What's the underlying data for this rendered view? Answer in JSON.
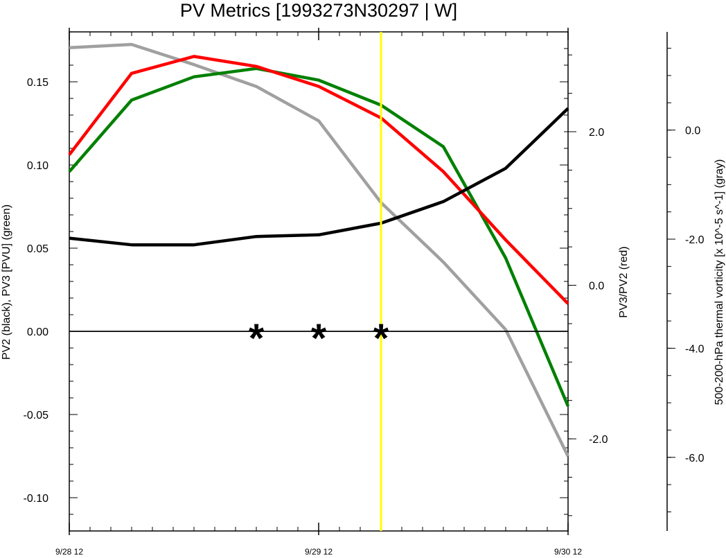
{
  "chart_data": {
    "type": "line",
    "title": "PV Metrics [1993273N30297 | W]",
    "ylabel_left": "PV2 (black), PV3 [PVU] (green)",
    "ylabel_right1": "PV3/PV2 (red)",
    "ylabel_right2": "500-200-hPa thermal vorticity [x 10^-5 s^-1] (gray)",
    "x": [
      0,
      3,
      6,
      9,
      12,
      15,
      18,
      21,
      24
    ],
    "x_ticks": [
      {
        "value": 0,
        "label": "9/28 12"
      },
      {
        "value": 12,
        "label": "9/29 12"
      },
      {
        "value": 24,
        "label": "9/30 12"
      }
    ],
    "xlim": [
      0,
      24
    ],
    "left_axis": {
      "ylim": [
        -0.12,
        0.18
      ],
      "ticks": [
        {
          "value": 0.15,
          "label": "0.15"
        },
        {
          "value": 0.1,
          "label": "0.10"
        },
        {
          "value": 0.05,
          "label": "0.05"
        },
        {
          "value": 0.0,
          "label": "0.00"
        },
        {
          "value": -0.05,
          "label": "-0.05"
        },
        {
          "value": -0.1,
          "label": "-0.10"
        }
      ]
    },
    "right_axis_1": {
      "ylim": [
        -3.2,
        3.3
      ],
      "ticks": [
        {
          "value": 2.0,
          "label": "2.0"
        },
        {
          "value": 0.0,
          "label": "0.0"
        },
        {
          "value": -2.0,
          "label": "-2.0"
        }
      ]
    },
    "right_axis_2": {
      "ylim": [
        -7.35,
        1.8
      ],
      "ticks": [
        {
          "value": 0.0,
          "label": "0.0"
        },
        {
          "value": -2.0,
          "label": "-2.0"
        },
        {
          "value": -4.0,
          "label": "-4.0"
        },
        {
          "value": -6.0,
          "label": "-6.0"
        }
      ]
    },
    "series": [
      {
        "key": "pv2",
        "axis": "left",
        "color": "#000000",
        "values": [
          0.056,
          0.052,
          0.052,
          0.057,
          0.058,
          0.065,
          0.078,
          0.098,
          0.134
        ]
      },
      {
        "key": "pv3",
        "axis": "left",
        "color": "#008000",
        "values": [
          0.096,
          0.139,
          0.153,
          0.158,
          0.151,
          0.136,
          0.111,
          0.044,
          -0.045
        ]
      },
      {
        "key": "ratio",
        "axis": "right1",
        "color": "#ff0000",
        "values": [
          1.7,
          2.76,
          2.98,
          2.85,
          2.59,
          2.18,
          1.48,
          0.59,
          -0.24
        ]
      },
      {
        "key": "vort",
        "axis": "right2",
        "color": "#a0a0a0",
        "values": [
          1.51,
          1.57,
          1.2,
          0.8,
          0.17,
          -1.33,
          -2.42,
          -3.66,
          -5.98
        ]
      }
    ],
    "zero_line": 0.0,
    "vertical_marker": {
      "x": 15,
      "color": "#ffff00"
    },
    "star_markers": {
      "x": [
        9,
        12,
        15
      ],
      "y": 0.0,
      "symbol": "*"
    }
  }
}
